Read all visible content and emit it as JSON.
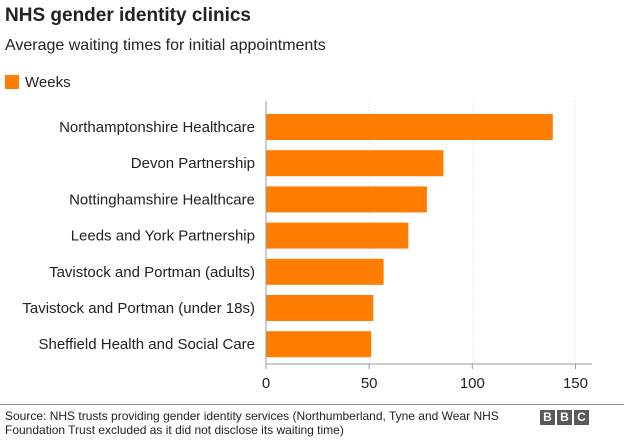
{
  "colors": {
    "bar": "#ff7d00",
    "grid": "#dcdcdc",
    "axis": "#9a9a9a",
    "text": "#222222",
    "logo": "#5a5a5a"
  },
  "footer": {
    "source": "Source: NHS trusts providing gender identity services (Northumberland, Tyne and Wear NHS Foundation Trust excluded as it did not disclose its waiting time)",
    "logo": "BBC"
  },
  "chart_data": {
    "type": "bar",
    "orientation": "horizontal",
    "title": "NHS gender identity clinics",
    "subtitle": "Average waiting times for initial appointments",
    "legend": "top-left",
    "categories": [
      "Northamptonshire Healthcare",
      "Devon Partnership",
      "Nottinghamshire Healthcare",
      "Leeds and York Partnership",
      "Tavistock and Portman (adults)",
      "Tavistock and Portman (under 18s)",
      "Sheffield Health and Social Care"
    ],
    "series": [
      {
        "name": "Weeks",
        "values": [
          139,
          86,
          78,
          69,
          57,
          52,
          51
        ]
      }
    ],
    "xlim": [
      0,
      158
    ],
    "xticks": [
      0,
      50,
      100,
      150
    ],
    "xtick_labels": [
      "0",
      "50",
      "100",
      "150"
    ],
    "grid": true
  }
}
